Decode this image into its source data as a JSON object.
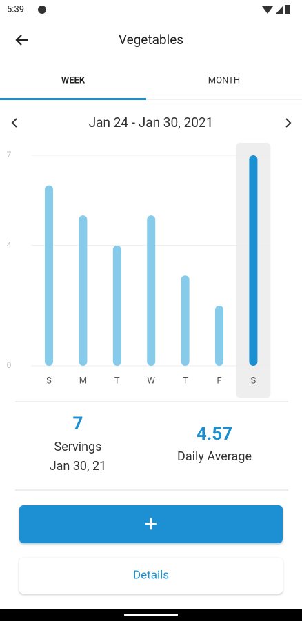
{
  "status_bar": {
    "time": "5:39"
  },
  "header": {
    "title": "Vegetables"
  },
  "tabs": [
    "WEEK",
    "MONTH"
  ],
  "date_range": "Jan 24 - Jan 30, 2021",
  "chart": {
    "type": "bar",
    "categories": [
      "S",
      "M",
      "T",
      "W",
      "T",
      "F",
      "S"
    ],
    "values": [
      6,
      5,
      4,
      5,
      3,
      2,
      7
    ],
    "ylim": [
      0,
      7
    ],
    "yticks": [
      0,
      4,
      7
    ],
    "grid": true,
    "color": "#86cbea",
    "selected_color": "#1a90d2",
    "selected_index": 6
  },
  "stats": {
    "servings": {
      "value": 7,
      "label": "Servings",
      "date": "Jan 30, 21"
    },
    "daily_average": {
      "value": 4.57,
      "label": "Daily Average"
    }
  },
  "buttons": {
    "add": "+",
    "details": "Details"
  }
}
